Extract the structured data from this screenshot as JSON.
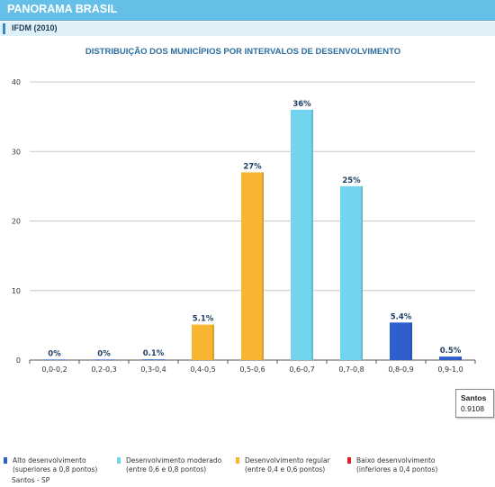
{
  "header": {
    "title": "PANORAMA BRASIL"
  },
  "subtitle": "IFDM (2010)",
  "chart_data": {
    "type": "bar",
    "title": "DISTRIBUIÇÃO DOS MUNICÍPIOS POR INTERVALOS DE DESENVOLVIMENTO",
    "xlabel": "",
    "ylabel": "",
    "ylim": [
      0,
      40
    ],
    "yticks": [
      0,
      10,
      20,
      30,
      40
    ],
    "grid": true,
    "categories": [
      "0,0-0,2",
      "0,2-0,3",
      "0,3-0,4",
      "0,4-0,5",
      "0,5-0,6",
      "0,6-0,7",
      "0,7-0,8",
      "0,8-0,9",
      "0,9-1,0"
    ],
    "values": [
      0,
      0,
      0.1,
      5.1,
      27,
      36,
      25,
      5.4,
      0.5
    ],
    "data_labels": [
      "0%",
      "0%",
      "0.1%",
      "5.1%",
      "27%",
      "36%",
      "25%",
      "5.4%",
      "0.5%"
    ],
    "bar_colors": [
      "#2f5fcf",
      "#2f5fcf",
      "#2f5fcf",
      "#f7b531",
      "#f7b531",
      "#73d4ef",
      "#73d4ef",
      "#2f5fcf",
      "#2f5fcf"
    ],
    "tooltip": {
      "name": "Santos",
      "value": "0.9108"
    }
  },
  "legend": [
    {
      "color": "#2f5fcf",
      "line1": "Alto desenvolvimento",
      "line2": "(superiores a 0,8 pontos)"
    },
    {
      "color": "#73d4ef",
      "line1": "Desenvolvimento moderado",
      "line2": "(entre 0,6 e 0,8 pontos)"
    },
    {
      "color": "#f7b531",
      "line1": "Desenvolvimento regular",
      "line2": "(entre 0,4 e 0,6 pontos)"
    },
    {
      "color": "#e02020",
      "line1": "Baixo desenvolvimento",
      "line2": "(inferiores a 0,4 pontos)"
    }
  ],
  "caption": "Santos - SP"
}
